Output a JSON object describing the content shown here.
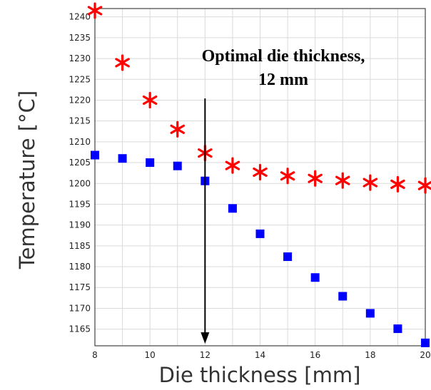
{
  "chart_data": {
    "type": "scatter",
    "xlabel": "Die thickness [mm]",
    "ylabel": "Temperature [°C]",
    "xlim": [
      8,
      20
    ],
    "ylim": [
      1161,
      1242
    ],
    "x_ticks": [
      8,
      10,
      12,
      14,
      16,
      18,
      20
    ],
    "y_ticks": [
      1165,
      1170,
      1175,
      1180,
      1185,
      1190,
      1195,
      1200,
      1205,
      1210,
      1215,
      1220,
      1225,
      1230,
      1235,
      1240
    ],
    "grid": true,
    "series": [
      {
        "marker": "asterisk",
        "color": "#ff0000",
        "x": [
          8,
          9,
          10,
          11,
          12,
          13,
          14,
          15,
          16,
          17,
          18,
          19,
          20
        ],
        "y": [
          1241.5,
          1229,
          1220,
          1213,
          1207.3,
          1204.3,
          1202.7,
          1201.8,
          1201.2,
          1200.7,
          1200.2,
          1199.8,
          1199.5
        ]
      },
      {
        "marker": "square",
        "color": "#0000ff",
        "x": [
          8,
          9,
          10,
          11,
          12,
          13,
          14,
          15,
          16,
          17,
          18,
          19,
          20
        ],
        "y": [
          1206.8,
          1206,
          1205,
          1204.2,
          1200.6,
          1194,
          1187.9,
          1182.4,
          1177.4,
          1172.9,
          1168.8,
          1165.1,
          1161.7
        ]
      }
    ],
    "annotations": [
      {
        "text_lines": [
          "Optimal die thickness,",
          "12 mm"
        ],
        "arrow_x": 12,
        "arrow_to_y": 1161.5
      }
    ]
  }
}
